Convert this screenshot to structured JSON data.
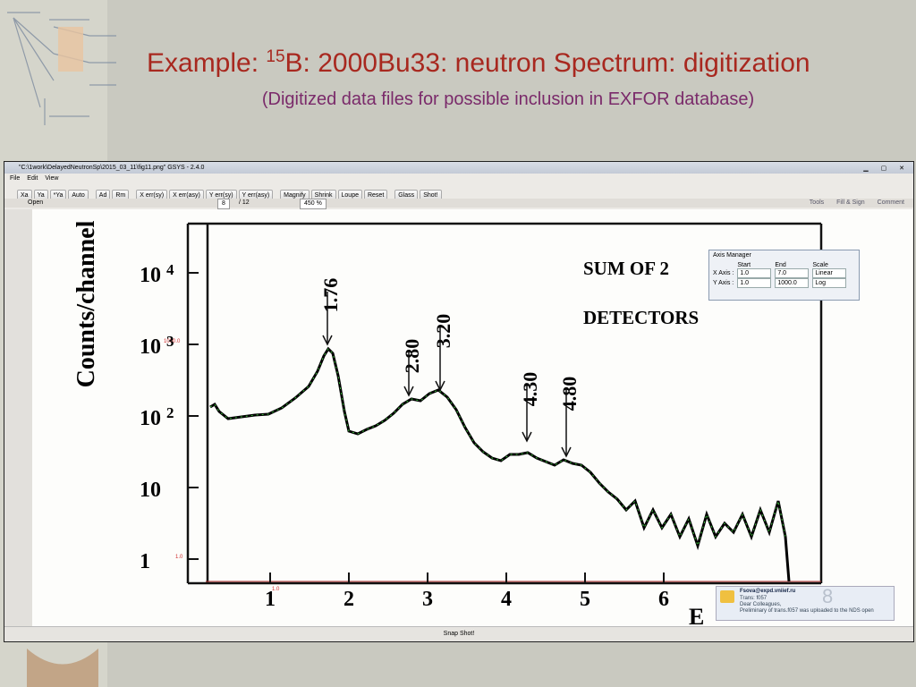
{
  "slide": {
    "title_prefix": "Example: ",
    "title_sup": "15",
    "title_rest": "B: 2000Bu33: neutron Spectrum: digitization",
    "subtitle": "(Digitized data files for possible inclusion in EXFOR database)"
  },
  "window": {
    "title": "\"C:\\1work\\DelayedNeutronSp\\2015_03_11\\fig11.png\" GSYS - 2.4.0",
    "menu": [
      "File",
      "Edit",
      "View"
    ],
    "toolbar": [
      "Xa",
      "Ya",
      "*Ya",
      "Auto",
      "Ad",
      "Rm",
      "X err(sy)",
      "X err(asy)",
      "Y err(sy)",
      "Y err(asy)",
      "Magnify",
      "Shrink",
      "Loupe",
      "Reset",
      "Glass",
      "Shot!"
    ],
    "viewer": {
      "open": "Open",
      "page": "8",
      "pages": "/ 12",
      "zoom": "450 %",
      "tools": [
        "Tools",
        "Fill & Sign",
        "Comment"
      ]
    },
    "status": "Snap Shot!"
  },
  "axis_manager": {
    "title": "Axis Manager",
    "headers": [
      "Start",
      "End",
      "Scale"
    ],
    "rows": [
      [
        "X Axis :",
        "1.0",
        "7.0",
        "Linear"
      ],
      [
        "Y Axis :",
        "1.0",
        "1000.0",
        "Log"
      ]
    ]
  },
  "figure": {
    "y_label": "Counts/channel",
    "y_ticks": [
      {
        "base": "10",
        "exp": "4"
      },
      {
        "base": "10",
        "exp": "3"
      },
      {
        "base": "10",
        "exp": "2"
      },
      {
        "base": "10"
      },
      {
        "base": "1"
      }
    ],
    "x_ticks": [
      "1",
      "2",
      "3",
      "4",
      "5",
      "6"
    ],
    "x_label": "E",
    "legend": [
      "SUM OF 2",
      "DETECTORS"
    ],
    "peaks": [
      "1.76",
      "2.80",
      "3.20",
      "4.30",
      "4.80"
    ],
    "markers": [
      "1000.0",
      "1.0",
      "1.0"
    ]
  },
  "notification": {
    "from": "Fsova@expd.vniief.ru",
    "lines": [
      "Trans: f057",
      "Dear Colleagues,",
      "Preliminary of trans.f057 was uploaded to the NDS open"
    ],
    "badge": "8"
  }
}
